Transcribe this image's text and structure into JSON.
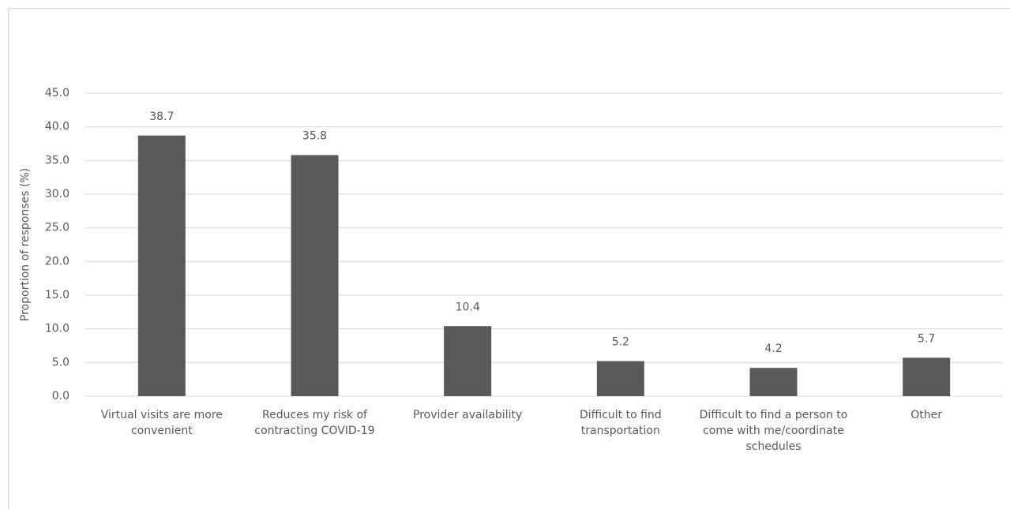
{
  "chart_data": {
    "type": "bar",
    "y_label": "Proportion of responses (%)",
    "categories": [
      "Virtual visits are more convenient",
      "Reduces my risk of contracting COVID-19",
      "Provider availability",
      "Difficult to find transportation",
      "Difficult to find a person to come with me/coordinate schedules",
      "Other"
    ],
    "values": [
      38.7,
      35.8,
      10.4,
      5.2,
      4.2,
      5.7
    ],
    "color": "#595959",
    "ylim": [
      0,
      45
    ],
    "yticks": [
      {
        "value": 0,
        "label": "0.0"
      },
      {
        "value": 5,
        "label": "5.0"
      },
      {
        "value": 10,
        "label": "10.0"
      },
      {
        "value": 15,
        "label": "15.0"
      },
      {
        "value": 20,
        "label": "20.0"
      },
      {
        "value": 25,
        "label": "25.0"
      },
      {
        "value": 30,
        "label": "30.0"
      },
      {
        "value": 35,
        "label": "35.0"
      },
      {
        "value": 40,
        "label": "40.0"
      },
      {
        "value": 45,
        "label": "45.0"
      }
    ],
    "grid": true
  }
}
